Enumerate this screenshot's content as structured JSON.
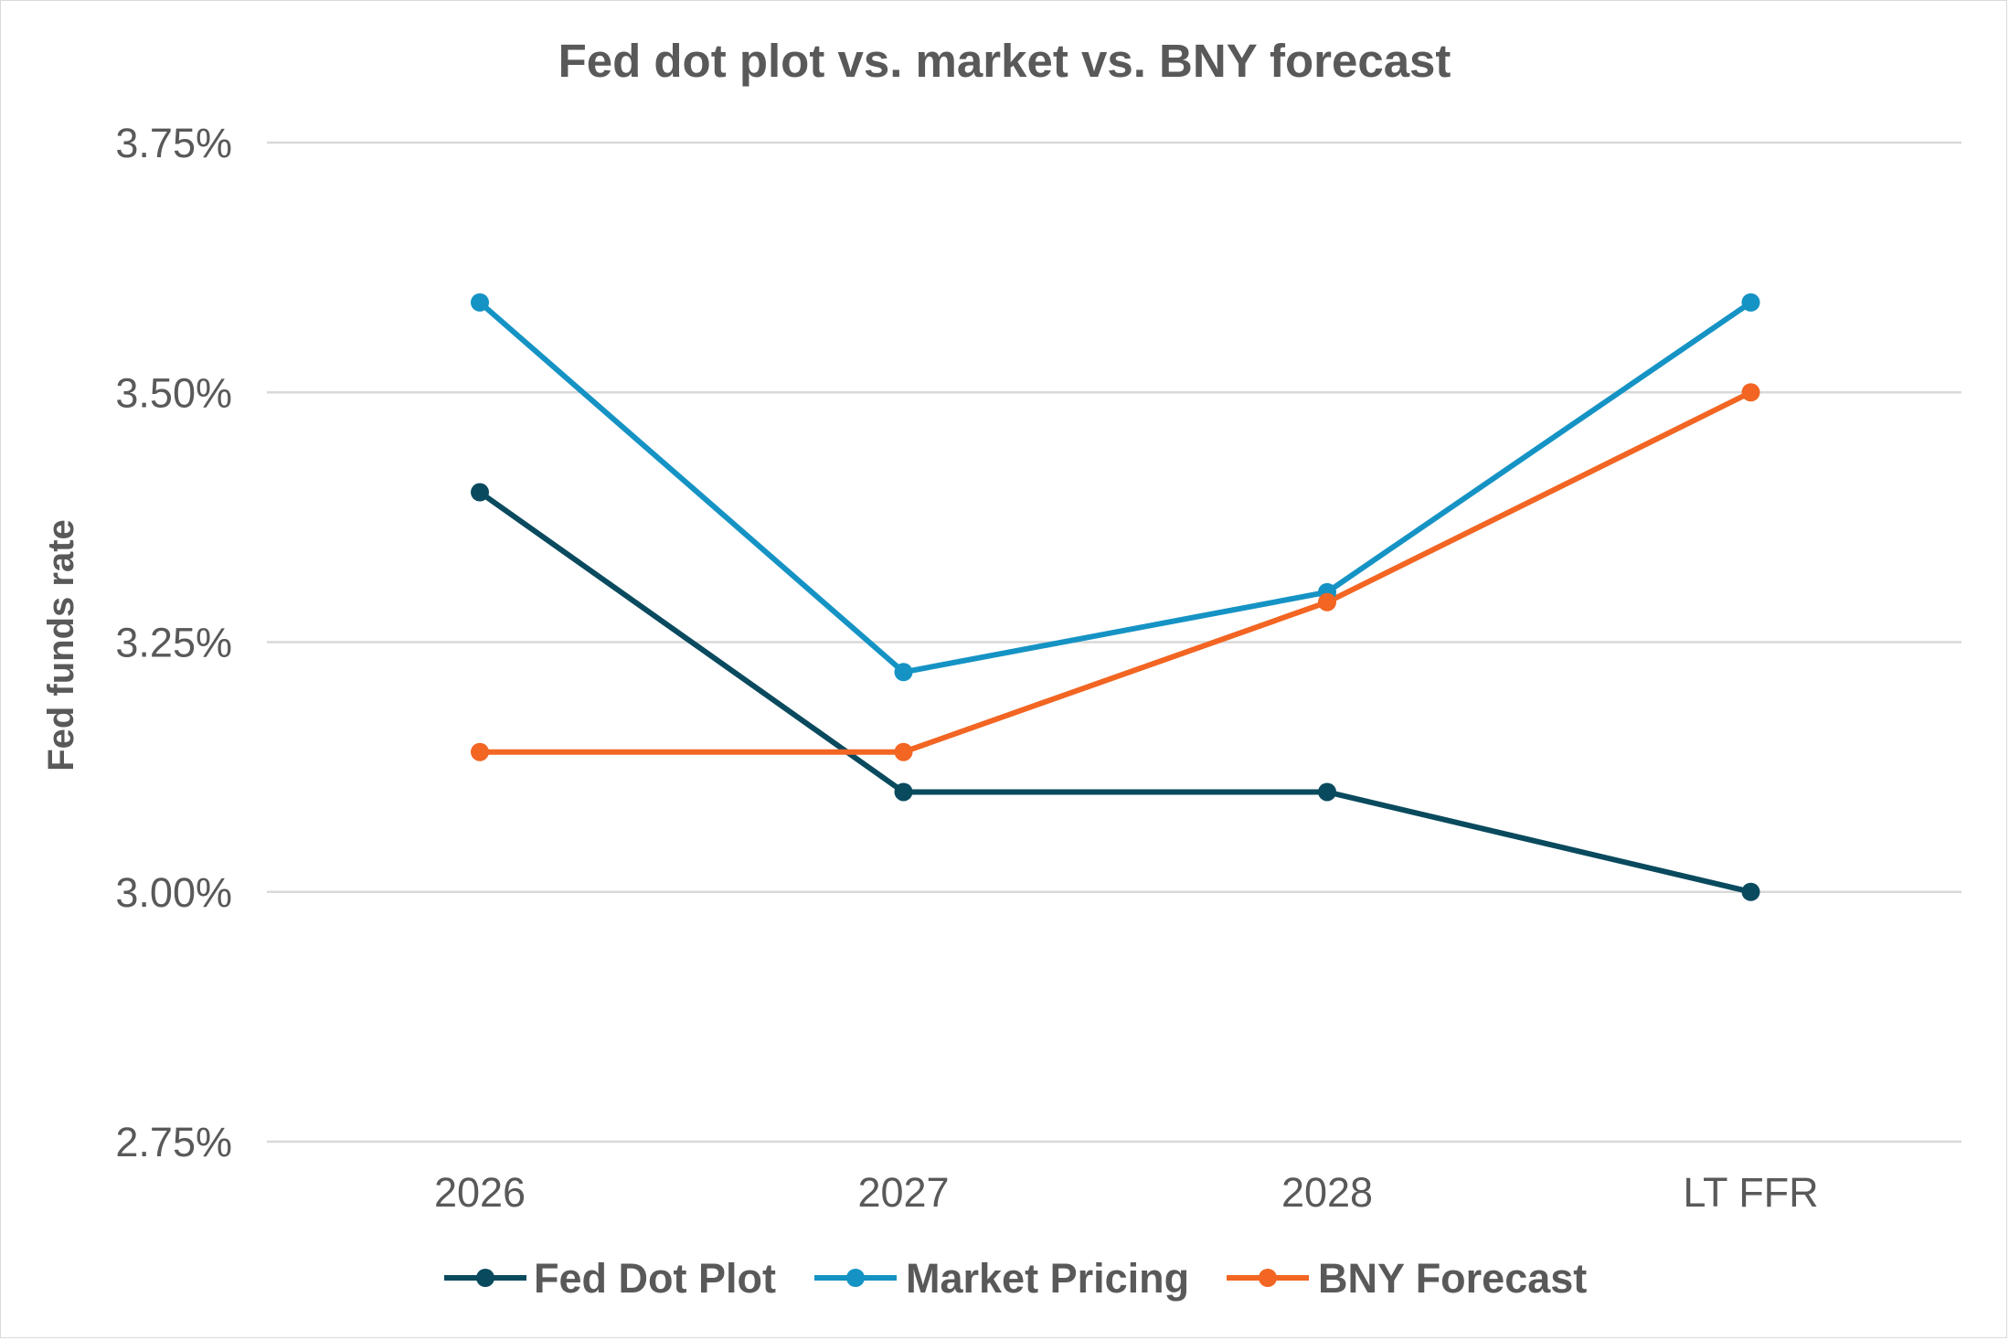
{
  "chart_data": {
    "type": "line",
    "title": "Fed dot plot vs. market vs. BNY forecast",
    "xlabel": "",
    "ylabel": "Fed funds rate",
    "categories": [
      "2026",
      "2027",
      "2028",
      "LT FFR"
    ],
    "ylim": [
      2.75,
      3.75
    ],
    "yticks": [
      2.75,
      3.0,
      3.25,
      3.5,
      3.75
    ],
    "ytick_labels": [
      "2.75%",
      "3.00%",
      "3.25%",
      "3.50%",
      "3.75%"
    ],
    "grid": true,
    "legend_position": "bottom",
    "series": [
      {
        "name": "Fed Dot Plot",
        "color": "#0a4a5e",
        "values": [
          3.4,
          3.1,
          3.1,
          3.0
        ]
      },
      {
        "name": "Market Pricing",
        "color": "#1593c4",
        "values": [
          3.59,
          3.22,
          3.3,
          3.59
        ]
      },
      {
        "name": "BNY Forecast",
        "color": "#f26522",
        "values": [
          3.14,
          3.14,
          3.29,
          3.5
        ]
      }
    ]
  }
}
